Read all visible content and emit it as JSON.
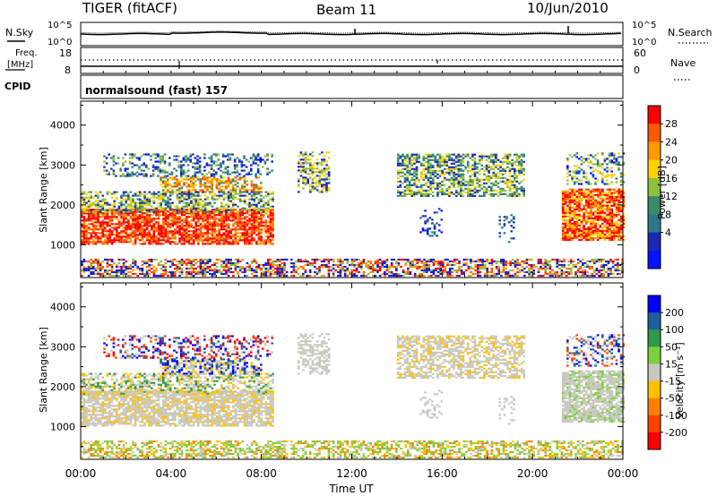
{
  "header": {
    "title": "TIGER (fitACF)",
    "beam": "Beam 11",
    "date": "10/Jun/2010"
  },
  "strips": {
    "nsky_label": "N.Sky",
    "nsky_ticks": [
      "10^5",
      "10^0"
    ],
    "nsearch_label": "N.Search",
    "nsearch_ticks": [
      "10^5",
      "10^0"
    ],
    "freq_label_1": "Freq.",
    "freq_label_2": "[MHz]",
    "freq_ticks": [
      "18",
      "8"
    ],
    "nave_label": "Nave",
    "nave_ticks": [
      "60",
      "0"
    ],
    "cpid_label": "CPID",
    "cpid_text": "normalsound (fast) 157"
  },
  "chart_data": [
    {
      "type": "heatmap",
      "name": "power-panel",
      "xlabel": "",
      "ylabel": "Slant Range [km]",
      "xlim": [
        0,
        24
      ],
      "ylim": [
        180,
        4600
      ],
      "yticks": [
        1000,
        2000,
        3000,
        4000
      ],
      "colorbar": {
        "label": "Power [dB]",
        "ticks": [
          "28",
          "24",
          "20",
          "16",
          "12",
          "8",
          "4"
        ],
        "colors": [
          "#ff0000",
          "#ff5a00",
          "#ff9a00",
          "#ffd000",
          "#8fc23a",
          "#3a8a6a",
          "#2a7a86",
          "#1a2ab0",
          "#0014ff"
        ]
      }
    },
    {
      "type": "heatmap",
      "name": "velocity-panel",
      "xlabel": "Time UT",
      "ylabel": "Slant Range [km]",
      "xlim": [
        0,
        24
      ],
      "ylim": [
        180,
        4600
      ],
      "xticks": [
        "00:00",
        "04:00",
        "08:00",
        "12:00",
        "16:00",
        "20:00",
        "00:00"
      ],
      "yticks": [
        1000,
        2000,
        3000,
        4000
      ],
      "colorbar": {
        "label": "Velocity [m s⁻¹]",
        "ticks": [
          "200",
          "100",
          "50",
          "15",
          "-15",
          "-50",
          "-100",
          "-200"
        ],
        "colors": [
          "#0000ff",
          "#1e5fa0",
          "#2e9a4a",
          "#7ad23a",
          "#c8c8c0",
          "#ffc000",
          "#ff8000",
          "#ff4000",
          "#ff0000"
        ]
      }
    }
  ]
}
